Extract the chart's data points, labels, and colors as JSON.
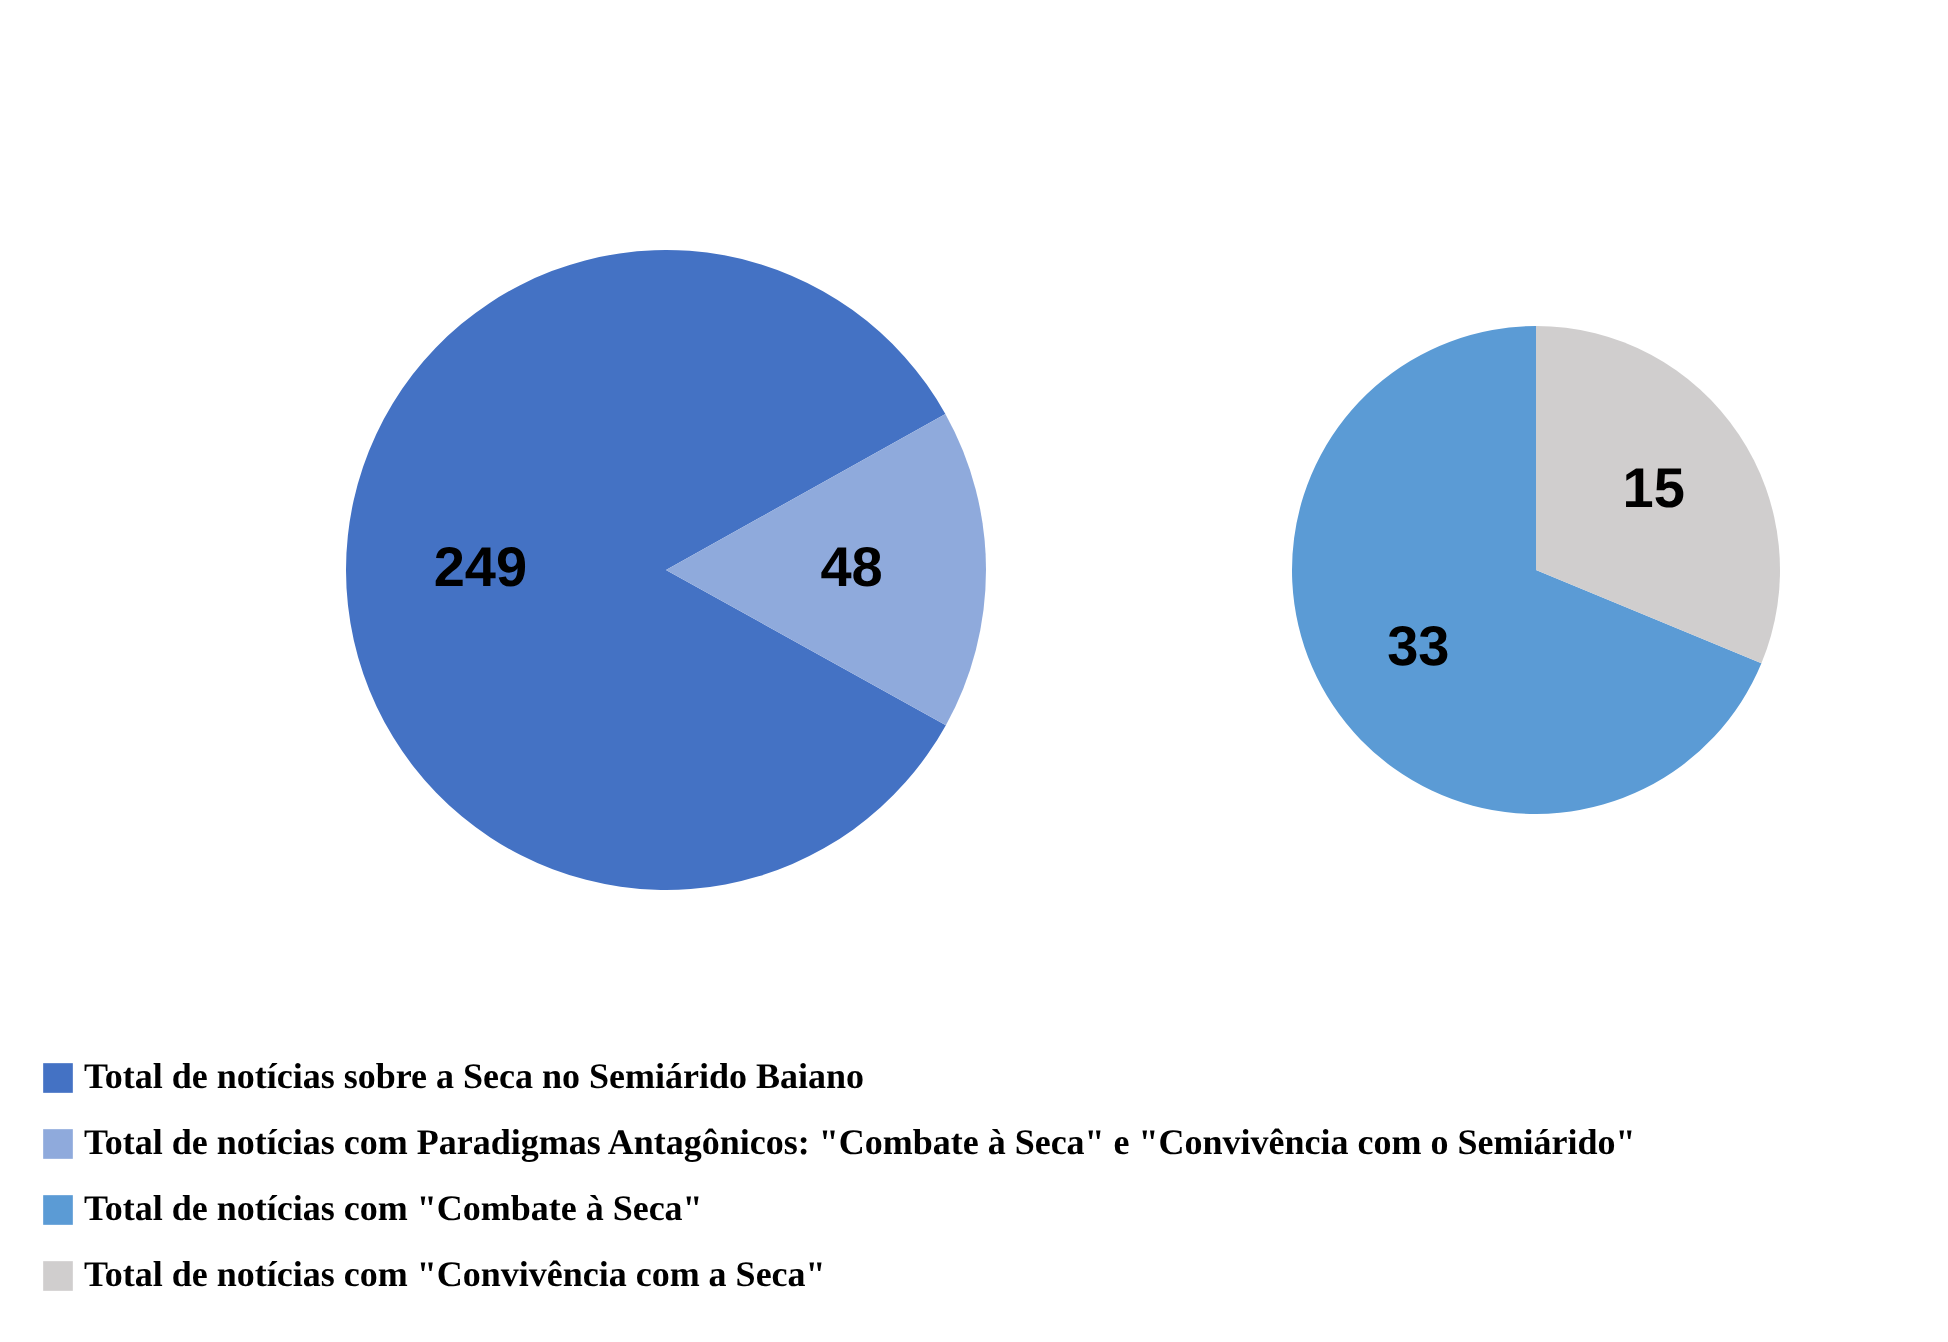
{
  "chart_data": [
    {
      "type": "pie",
      "categories": [
        "Total de notícias sobre a Seca no Semiárido Baiano",
        "Total de notícias com Paradigmas Antagônicos: \"Combate à Seca\" e \"Convivência com o Semiárido\""
      ],
      "values": [
        249,
        48
      ],
      "colors": [
        "#4472c4",
        "#8faadc"
      ],
      "data_labels": true,
      "legend": "bottom"
    },
    {
      "type": "pie",
      "categories": [
        "Total de notícias com \"Combate à Seca\"",
        "Total de notícias com \"Convivência com a Seca\""
      ],
      "values": [
        33,
        15
      ],
      "colors": [
        "#5b9bd5",
        "#d0cece"
      ],
      "data_labels": true,
      "legend": "bottom"
    }
  ]
}
